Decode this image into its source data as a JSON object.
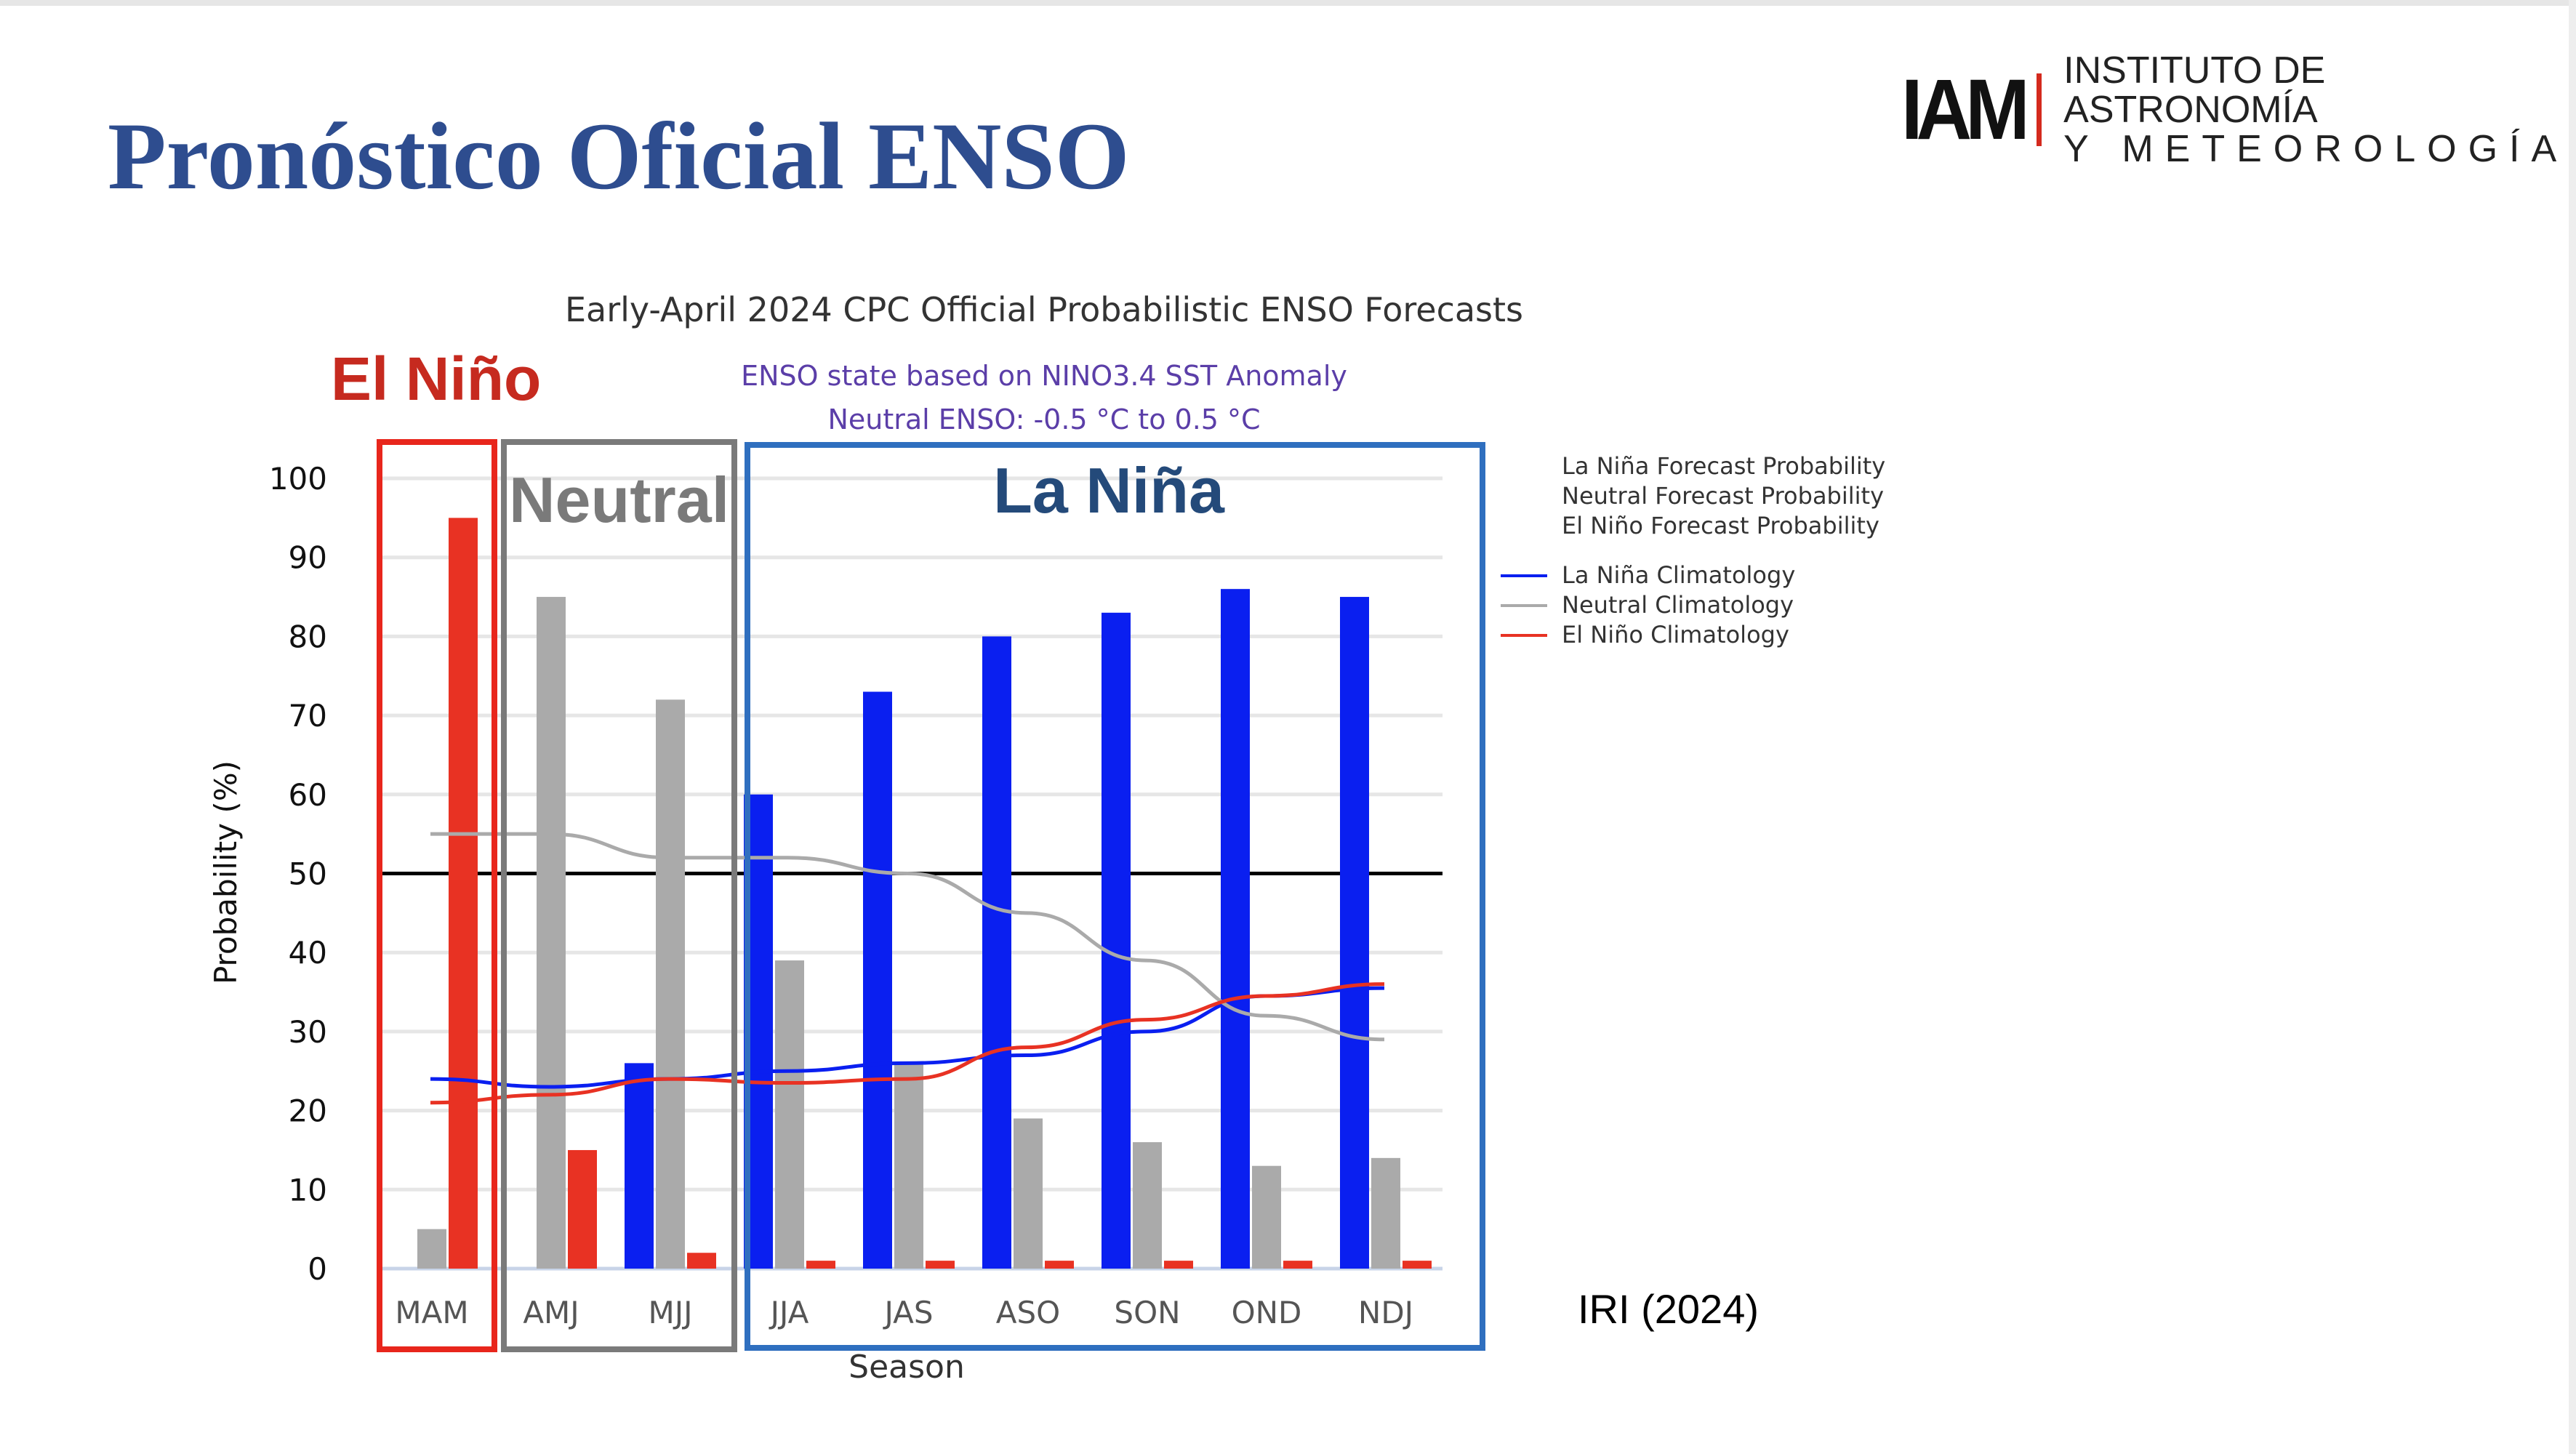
{
  "header": {
    "title": "Pronóstico Oficial ENSO",
    "logo_mark": "IAM",
    "logo_line1": "INSTITUTO DE ASTRONOMÍA",
    "logo_line2": "Y METEOROLOGÍA"
  },
  "annotations": {
    "el_nino": "El Niño",
    "neutral": "Neutral",
    "la_nina": "La Niña",
    "source": "IRI (2024)"
  },
  "chart_data": {
    "type": "bar",
    "title": "Early-April 2024 CPC Official Probabilistic ENSO Forecasts",
    "subtitle1": "ENSO state based on NINO3.4 SST Anomaly",
    "subtitle2": "Neutral ENSO: -0.5 °C to 0.5 °C",
    "xlabel": "Season",
    "ylabel": "Probability (%)",
    "ylim": [
      0,
      100
    ],
    "yticks": [
      "0",
      "10",
      "20",
      "30",
      "40",
      "50",
      "60",
      "70",
      "80",
      "90",
      "100"
    ],
    "reference_line": 50,
    "categories": [
      "MAM",
      "AMJ",
      "MJJ",
      "JJA",
      "JAS",
      "ASO",
      "SON",
      "OND",
      "NDJ"
    ],
    "series": [
      {
        "name": "La Niña Forecast Probability",
        "kind": "bar",
        "color": "#0a1ff0",
        "values": [
          0,
          0,
          26,
          60,
          73,
          80,
          83,
          86,
          85
        ]
      },
      {
        "name": "Neutral Forecast Probability",
        "kind": "bar",
        "color": "#aaaaaa",
        "values": [
          5,
          85,
          72,
          39,
          26,
          19,
          16,
          13,
          14
        ]
      },
      {
        "name": "El Niño Forecast Probability",
        "kind": "bar",
        "color": "#e83223",
        "values": [
          95,
          15,
          2,
          1,
          1,
          1,
          1,
          1,
          1
        ]
      },
      {
        "name": "La Niña Climatology",
        "kind": "line",
        "color": "#0a1ff0",
        "values": [
          24,
          23,
          24,
          25,
          26,
          27,
          30,
          34.5,
          35.5
        ]
      },
      {
        "name": "Neutral Climatology",
        "kind": "line",
        "color": "#aaaaaa",
        "values": [
          55,
          55,
          52,
          52,
          50,
          45,
          39,
          32,
          29
        ]
      },
      {
        "name": "El Niño Climatology",
        "kind": "line",
        "color": "#e83223",
        "values": [
          21,
          22,
          24,
          23.5,
          24,
          28,
          31.5,
          34.5,
          36
        ]
      }
    ],
    "legend_position": "right",
    "grid": true
  }
}
